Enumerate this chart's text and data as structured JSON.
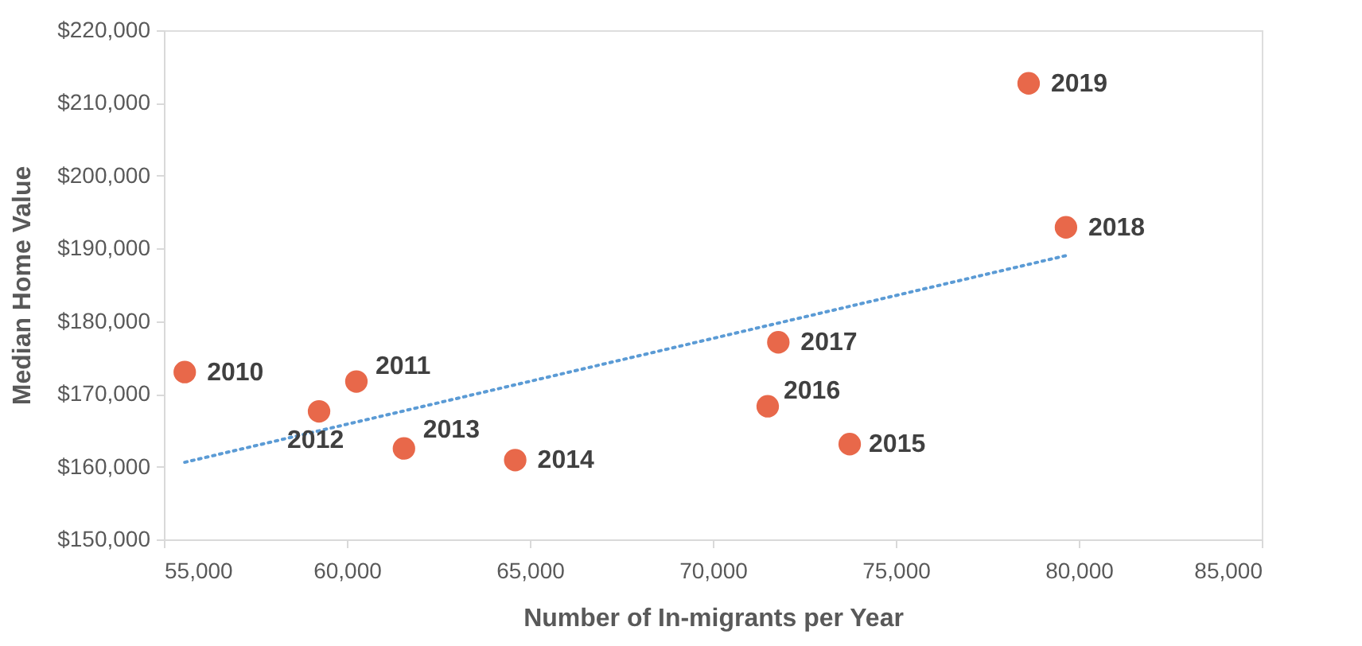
{
  "chart_data": {
    "type": "scatter",
    "xlabel": "Number of In-migrants per Year",
    "ylabel": "Median Home Value",
    "xlim": [
      55000,
      85000
    ],
    "xticks": [
      {
        "value": 55000,
        "label": "55,000"
      },
      {
        "value": 60000,
        "label": "60,000"
      },
      {
        "value": 65000,
        "label": "65,000"
      },
      {
        "value": 70000,
        "label": "70,000"
      },
      {
        "value": 75000,
        "label": "75,000"
      },
      {
        "value": 80000,
        "label": "80,000"
      },
      {
        "value": 85000,
        "label": "85,000"
      }
    ],
    "ylim": [
      150000,
      220000
    ],
    "yticks": [
      {
        "value": 150000,
        "label": "$150,000"
      },
      {
        "value": 160000,
        "label": "$160,000"
      },
      {
        "value": 170000,
        "label": "$170,000"
      },
      {
        "value": 180000,
        "label": "$180,000"
      },
      {
        "value": 190000,
        "label": "$190,000"
      },
      {
        "value": 200000,
        "label": "$200,000"
      },
      {
        "value": 210000,
        "label": "$210,000"
      },
      {
        "value": 220000,
        "label": "$220,000"
      }
    ],
    "grid": false,
    "series": [
      {
        "color": "#e8684a",
        "marker": "circle",
        "x": [
          55570,
          60260,
          59240,
          61560,
          64600,
          73740,
          71500,
          71790,
          79650,
          78630
        ],
        "values": [
          173000,
          171700,
          167600,
          162500,
          160900,
          163100,
          168300,
          177100,
          192900,
          212700
        ]
      },
      {
        "type": "line",
        "color": "#5b9bd5",
        "line_style": "dotted",
        "marker": "none",
        "x": [
          55570,
          79720
        ],
        "values": [
          160600,
          189100
        ]
      }
    ],
    "annotations": [
      {
        "text": "2010",
        "x": 55570,
        "y": 173000
      },
      {
        "text": "2011",
        "x": 60260,
        "y": 171700
      },
      {
        "text": "2012",
        "x": 59240,
        "y": 167600
      },
      {
        "text": "2013",
        "x": 61560,
        "y": 162500
      },
      {
        "text": "2014",
        "x": 64600,
        "y": 160900
      },
      {
        "text": "2015",
        "x": 73740,
        "y": 163100
      },
      {
        "text": "2016",
        "x": 71500,
        "y": 168300
      },
      {
        "text": "2017",
        "x": 71790,
        "y": 177100
      },
      {
        "text": "2018",
        "x": 79650,
        "y": 192900
      },
      {
        "text": "2019",
        "x": 78630,
        "y": 212700
      }
    ]
  }
}
